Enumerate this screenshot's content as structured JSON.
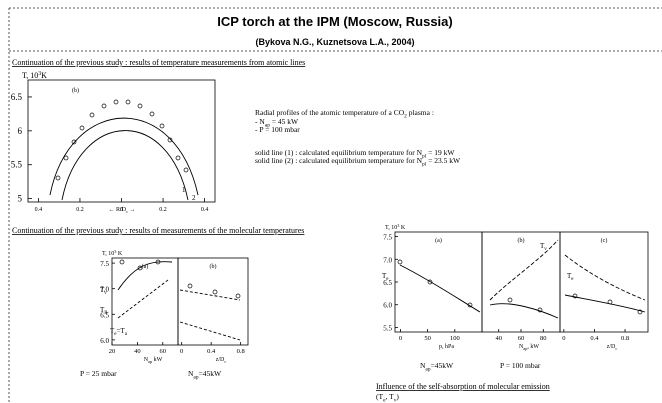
{
  "header": {
    "title": "ICP torch at the IPM (Moscow, Russia)",
    "subtitle": "(Bykova N.G., Kuznetsova L.A., 2004)"
  },
  "section1": {
    "heading": "Continuation of the previous study : results of temperature measurements from atomic lines",
    "figure": {
      "y_label": [
        {
          "t": "T, 10"
        },
        {
          "sup": "3"
        },
        {
          "t": "K"
        }
      ],
      "panel_label": "(b)",
      "x_label": [
        {
          "t": "← R/D"
        },
        {
          "sub": "c"
        },
        {
          "t": " →"
        }
      ],
      "curve_labels": [
        "1",
        "2"
      ],
      "ylim": [
        4.95,
        6.75
      ],
      "yticks": [
        5,
        5.5,
        6,
        6.5
      ],
      "xlim": [
        -0.45,
        0.45
      ],
      "xticks": [
        {
          "value": -0.4,
          "label": "0.4"
        },
        {
          "value": -0.2,
          "label": "0.2"
        },
        0,
        0.2,
        0.4
      ]
    },
    "description": {
      "title": [
        {
          "t": "Radial profiles of the atomic temperature of a CO"
        },
        {
          "sub": "2"
        },
        {
          "t": " plasma :"
        }
      ],
      "lines": [
        [
          {
            "t": "- N"
          },
          {
            "sub": "ap"
          },
          {
            "t": " = 45 kW"
          }
        ],
        [
          {
            "t": "- P = 100 mbar"
          }
        ]
      ],
      "notes": [
        [
          {
            "t": "solid line (1) : calculated equilibrium temperature for N"
          },
          {
            "sub": "pl"
          },
          {
            "t": " = 19 kW"
          }
        ],
        [
          {
            "t": "solid line (2) : calculated equilibrium temperature for N"
          },
          {
            "sub": "pl"
          },
          {
            "t": " = 23.5 kW"
          }
        ]
      ]
    }
  },
  "section2": {
    "heading": "Continuation of the previous study : results of measurements of the molecular temperatures",
    "figure": {
      "y_label": [
        {
          "t": "T, 10"
        },
        {
          "sup": "3"
        },
        {
          "t": " K"
        }
      ],
      "ylim": [
        5.9,
        7.6
      ],
      "yticks": [
        {
          "value": 6,
          "label": "6.0"
        },
        6.5,
        {
          "value": 7,
          "label": "7.0"
        },
        7.5
      ],
      "panels": [
        {
          "label": "(a)",
          "xlim": [
            20,
            72
          ],
          "xticks": [
            20,
            40,
            60
          ],
          "x_label": [
            {
              "t": "N"
            },
            {
              "sub": "ap"
            },
            {
              "t": " kW"
            }
          ],
          "curve_labels": [
            [
              {
                "t": "T"
              },
              {
                "sub": "v"
              }
            ],
            [
              {
                "t": "T"
              },
              {
                "sub": "R"
              }
            ],
            [
              {
                "t": "T"
              },
              {
                "sub": "e"
              },
              {
                "t": "=T"
              },
              {
                "sub": "a"
              }
            ]
          ]
        },
        {
          "label": "(b)",
          "xlim": [
            -0.05,
            0.9
          ],
          "xticks": [
            0,
            0.4,
            0.8
          ],
          "x_label": [
            {
              "t": "z/D"
            },
            {
              "sub": "c"
            }
          ]
        }
      ],
      "captions": [
        [
          {
            "t": "P = 25 mbar"
          }
        ],
        [
          {
            "t": "N"
          },
          {
            "sub": "ap"
          },
          {
            "t": "=45kW"
          }
        ]
      ]
    }
  },
  "section3": {
    "figure": {
      "y_label": [
        {
          "t": "T, 10"
        },
        {
          "sup": "3"
        },
        {
          "t": " K"
        }
      ],
      "ylim": [
        5.4,
        7.6
      ],
      "yticks": [
        5.5,
        {
          "value": 6,
          "label": "6.0"
        },
        6.5,
        {
          "value": 7,
          "label": "7.0"
        },
        7.5
      ],
      "panels": [
        {
          "label": "(a)",
          "xlim": [
            -10,
            150
          ],
          "xticks": [
            0,
            50,
            100
          ],
          "x_label": [
            {
              "t": "p, hPa"
            }
          ],
          "curve_labels": [
            [
              {
                "t": "T"
              },
              {
                "sub": "e"
              }
            ]
          ]
        },
        {
          "label": "(b)",
          "xlim": [
            25,
            95
          ],
          "xticks": [
            40,
            60,
            80
          ],
          "x_label": [
            {
              "t": "N"
            },
            {
              "sub": "ap"
            },
            {
              "t": ", kW"
            }
          ],
          "curve_labels": [
            [
              {
                "t": "T"
              },
              {
                "sub": "v"
              }
            ]
          ]
        },
        {
          "label": "(c)",
          "xlim": [
            -0.05,
            1.1
          ],
          "xticks": [
            0,
            0.4,
            0.8
          ],
          "x_label": [
            {
              "t": "z/D"
            },
            {
              "sub": "c"
            }
          ],
          "curve_labels": [
            [
              {
                "t": "T"
              },
              {
                "sub": "e"
              }
            ]
          ]
        }
      ],
      "captions": [
        [
          {
            "t": "N"
          },
          {
            "sub": "ap"
          },
          {
            "t": "=45kW"
          }
        ],
        [
          {
            "t": "P = 100 mbar"
          }
        ]
      ]
    },
    "caption": "Influence of the self-absorption of molecular emission",
    "caption2": [
      {
        "t": "(T"
      },
      {
        "sub": "e"
      },
      {
        "t": ", T"
      },
      {
        "sub": "v"
      },
      {
        "t": ")"
      }
    ]
  }
}
